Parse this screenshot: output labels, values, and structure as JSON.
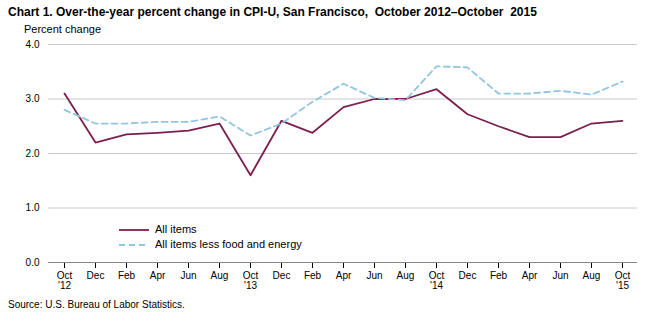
{
  "chart_data": {
    "type": "line",
    "title": "Chart 1. Over-the-year percent change in CPI-U, San Francisco,  October 2012–October  2015",
    "ylabel": "Percent change",
    "source": "Source: U.S. Bureau of Labor Statistics.",
    "categories": [
      "Oct\n'12",
      "Dec",
      "Feb",
      "Apr",
      "Jun",
      "Aug",
      "Oct\n'13",
      "Dec",
      "Feb",
      "Apr",
      "Jun",
      "Aug",
      "Oct\n'14",
      "Dec",
      "Feb",
      "Apr",
      "Jun",
      "Aug",
      "Oct\n'15"
    ],
    "series": [
      {
        "name": "All items",
        "color": "#7B1F4E",
        "line_style": "solid",
        "values": [
          3.1,
          2.2,
          2.35,
          2.38,
          2.42,
          2.55,
          1.6,
          2.6,
          2.38,
          2.85,
          3.0,
          3.0,
          3.18,
          2.72,
          2.5,
          2.3,
          2.3,
          2.55,
          2.6
        ]
      },
      {
        "name": "All items less food and energy",
        "color": "#92C5E0",
        "line_style": "dashed",
        "values": [
          2.8,
          2.55,
          2.55,
          2.58,
          2.58,
          2.68,
          2.33,
          2.55,
          2.95,
          3.28,
          3.02,
          2.98,
          3.6,
          3.58,
          3.1,
          3.1,
          3.15,
          3.08,
          3.32
        ]
      }
    ],
    "ylim": [
      0.0,
      4.0
    ],
    "yticks": [
      {
        "value": 0.0,
        "label": "0.0"
      },
      {
        "value": 1.0,
        "label": "1.0"
      },
      {
        "value": 2.0,
        "label": "2.0"
      },
      {
        "value": 3.0,
        "label": "3.0"
      },
      {
        "value": 4.0,
        "label": "4.0"
      }
    ],
    "grid": true,
    "legend": "lower left"
  }
}
